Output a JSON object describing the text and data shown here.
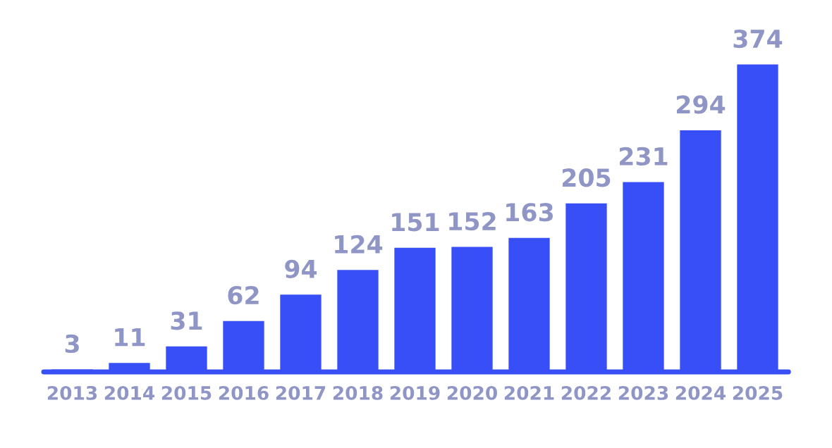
{
  "chart_data": {
    "type": "bar",
    "categories": [
      "2013",
      "2014",
      "2015",
      "2016",
      "2017",
      "2018",
      "2019",
      "2020",
      "2021",
      "2022",
      "2023",
      "2024",
      "2025"
    ],
    "values": [
      3,
      11,
      31,
      62,
      94,
      124,
      151,
      152,
      163,
      205,
      231,
      294,
      374
    ],
    "color": "#384ef7",
    "tick_labels": "x",
    "data_labels": true,
    "grid": false,
    "legend": false
  }
}
